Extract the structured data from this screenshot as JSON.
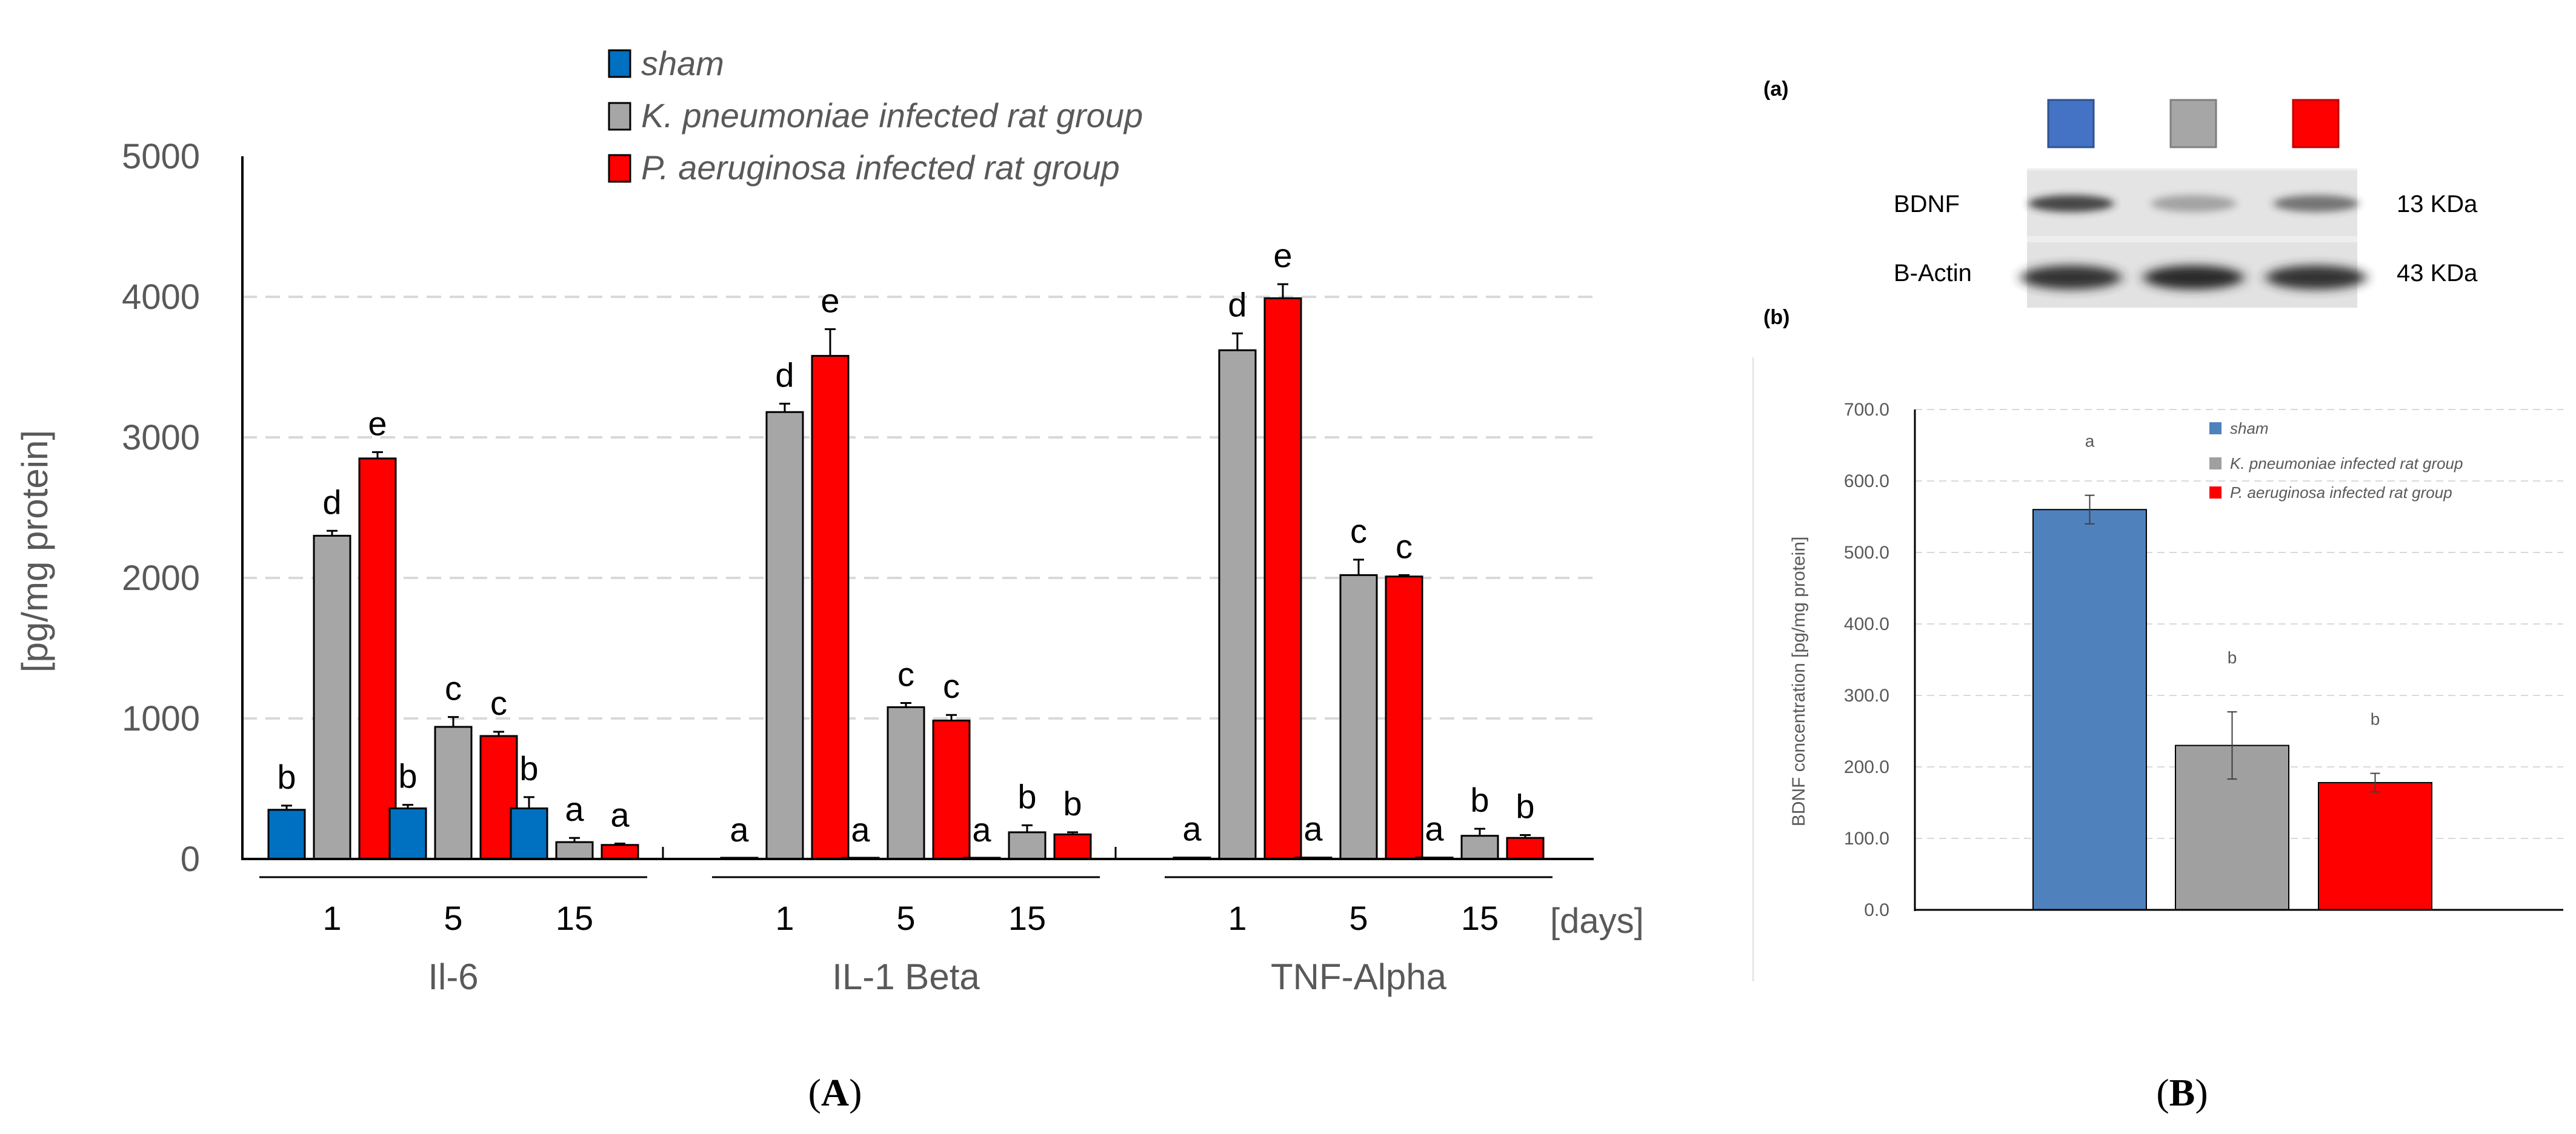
{
  "panel_labels": {
    "A": {
      "open": "(",
      "letter": "A",
      "close": ")"
    },
    "B": {
      "open": "(",
      "letter": "B",
      "close": ")"
    },
    "a": "(a)",
    "b": "(b)"
  },
  "colors": {
    "sham_A": "#0070c0",
    "kp_A": "#a6a6a6",
    "pa_A": "#ff0000",
    "sham_B": "#4f81bd",
    "kp_B": "#a0a0a0",
    "pa_B": "#ff0000",
    "grid": "#d9d9d9"
  },
  "chart_data": [
    {
      "type": "bar",
      "title": "",
      "ylabel": "[pg/mg protein]",
      "xlabel": "[days]",
      "ylim": [
        0,
        5000
      ],
      "yticks": [
        "0",
        "1000",
        "2000",
        "3000",
        "4000",
        "5000"
      ],
      "ytick_values": [
        0,
        1000,
        2000,
        3000,
        4000,
        5000
      ],
      "legend": [
        "sham",
        "K. pneumoniae infected rat group",
        "P. aeruginosa infected rat group"
      ],
      "groups": [
        {
          "name": "Il-6",
          "days": [
            {
              "day": "1",
              "values": [
                350,
                2300,
                2850
              ],
              "errors": [
                30,
                35,
                45
              ],
              "labels": [
                "b",
                "d",
                "e"
              ]
            },
            {
              "day": "5",
              "values": [
                360,
                940,
                875
              ],
              "errors": [
                25,
                70,
                30
              ],
              "labels": [
                "b",
                "c",
                "c"
              ]
            },
            {
              "day": "15",
              "values": [
                360,
                120,
                100
              ],
              "errors": [
                80,
                30,
                10
              ],
              "labels": [
                "b",
                "a",
                "a"
              ]
            }
          ]
        },
        {
          "name": "IL-1 Beta",
          "days": [
            {
              "day": "1",
              "values": [
                5,
                3180,
                3580
              ],
              "errors": [
                0,
                60,
                190
              ],
              "labels": [
                "a",
                "d",
                "e"
              ]
            },
            {
              "day": "5",
              "values": [
                5,
                1080,
                985
              ],
              "errors": [
                0,
                30,
                40
              ],
              "labels": [
                "a",
                "c",
                "c"
              ]
            },
            {
              "day": "15",
              "values": [
                5,
                190,
                175
              ],
              "errors": [
                0,
                50,
                15
              ],
              "labels": [
                "a",
                "b",
                "b"
              ]
            }
          ]
        },
        {
          "name": "TNF-Alpha",
          "days": [
            {
              "day": "1",
              "values": [
                10,
                3620,
                3990
              ],
              "errors": [
                0,
                120,
                100
              ],
              "labels": [
                "a",
                "d",
                "e"
              ]
            },
            {
              "day": "5",
              "values": [
                10,
                2020,
                2010
              ],
              "errors": [
                0,
                110,
                10
              ],
              "labels": [
                "a",
                "c",
                "c"
              ]
            },
            {
              "day": "15",
              "values": [
                10,
                165,
                150
              ],
              "errors": [
                0,
                50,
                20
              ],
              "labels": [
                "a",
                "b",
                "b"
              ]
            }
          ]
        }
      ]
    },
    {
      "type": "bar",
      "title": "",
      "ylabel": "BDNF  concentration  [pg/mg protein]",
      "ylim": [
        0,
        700
      ],
      "yticks": [
        "0.0",
        "100.0",
        "200.0",
        "300.0",
        "400.0",
        "500.0",
        "600.0",
        "700.0"
      ],
      "ytick_values": [
        0,
        100,
        200,
        300,
        400,
        500,
        600,
        700
      ],
      "legend": [
        "sham",
        "K. pneumoniae infected rat group",
        "P. aeruginosa infected rat group"
      ],
      "categories": [
        "sham",
        "K. pneumoniae infected rat group",
        "P. aeruginosa infected rat group"
      ],
      "values": [
        560,
        230,
        178
      ],
      "errors": [
        20,
        47,
        13
      ],
      "labels": [
        "a",
        "b",
        "b"
      ]
    }
  ],
  "western_blot": {
    "rows": [
      {
        "protein": "BDNF",
        "size": "13 KDa",
        "intensity": [
          0.85,
          0.35,
          0.6
        ]
      },
      {
        "protein": "B-Actin",
        "size": "43 KDa",
        "intensity": [
          0.95,
          1.0,
          0.95
        ]
      }
    ]
  }
}
